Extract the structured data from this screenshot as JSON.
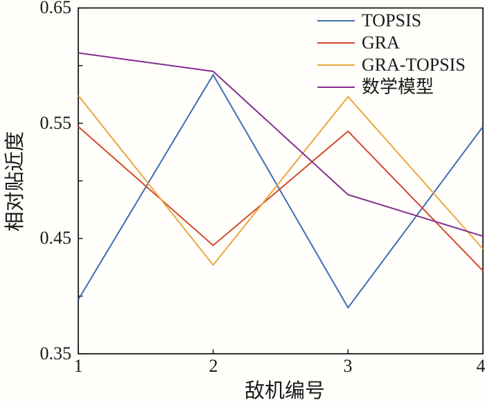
{
  "chart_data": {
    "type": "line",
    "title": "",
    "xlabel": "敌机编号",
    "ylabel": "相对贴近度",
    "x": [
      1,
      2,
      3,
      4
    ],
    "xlim": [
      1,
      4
    ],
    "ylim": [
      0.35,
      0.65
    ],
    "xtick_labels": [
      "1",
      "2",
      "3",
      "4"
    ],
    "ytick_labels": [
      "0.65",
      "0.55",
      "0.45",
      "0.35"
    ],
    "ytick_values_labeled": [
      0.65,
      0.55,
      0.45,
      0.35
    ],
    "ytick_values_all": [
      0.35,
      0.4,
      0.45,
      0.5,
      0.55,
      0.6,
      0.65
    ],
    "grid": false,
    "legend_position": "top-right-inside",
    "axis_color": "#1a1a1a",
    "background_color": "#fffefa",
    "series": [
      {
        "name": "TOPSIS",
        "color": "#3f6db5",
        "values": [
          0.397,
          0.592,
          0.39,
          0.547
        ]
      },
      {
        "name": "GRA",
        "color": "#d14a28",
        "values": [
          0.547,
          0.444,
          0.543,
          0.422
        ]
      },
      {
        "name": "GRA-TOPSIS",
        "color": "#eaa63c",
        "values": [
          0.574,
          0.427,
          0.573,
          0.441
        ]
      },
      {
        "name": "数学模型",
        "color": "#832d8e",
        "values": [
          0.611,
          0.595,
          0.488,
          0.452
        ]
      }
    ]
  }
}
